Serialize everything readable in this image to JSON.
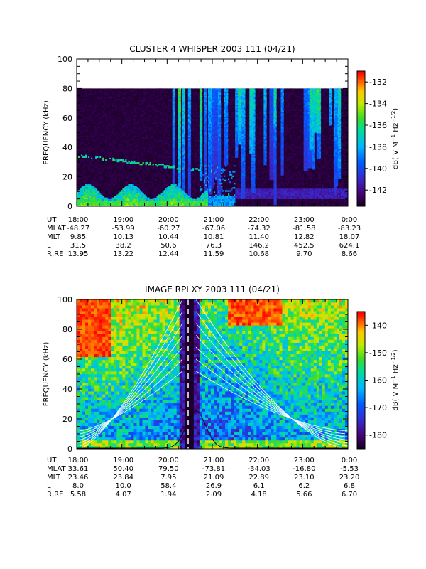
{
  "chart_data": [
    {
      "type": "heatmap",
      "title": "CLUSTER 4 WHISPER 2003 111 (04/21)",
      "ylabel": "FREQUENCY (kHz)",
      "ylim": [
        0,
        100
      ],
      "y_ticks": [
        0,
        20,
        40,
        60,
        80,
        100
      ],
      "x_tick_labels": [
        "18:00",
        "19:00",
        "20:00",
        "21:00",
        "22:00",
        "23:00",
        "0:00"
      ],
      "data_extent_khz": [
        0,
        80
      ],
      "colorbar": {
        "label": "dB( V M⁻¹ Hz⁻¹ᐟ²)",
        "label_text": "dB( V M",
        "range": [
          -143.5,
          -131
        ],
        "ticks": [
          -132,
          -134,
          -136,
          -138,
          -140,
          -142
        ]
      },
      "ephemeris": {
        "rows": [
          {
            "label": "UT",
            "values": [
              "18:00",
              "19:00",
              "20:00",
              "21:00",
              "22:00",
              "23:00",
              "0:00"
            ]
          },
          {
            "label": "MLAT",
            "values": [
              "-48.27",
              "-53.99",
              "-60.27",
              "-67.06",
              "-74.32",
              "-81.58",
              "-83.23"
            ]
          },
          {
            "label": "MLT",
            "values": [
              "9.85",
              "10.13",
              "10.44",
              "10.81",
              "11.40",
              "12.82",
              "18.07"
            ]
          },
          {
            "label": "L",
            "values": [
              "31.5",
              "38.2",
              "50.6",
              "76.3",
              "146.2",
              "452.5",
              "624.1"
            ]
          },
          {
            "label": "R,RE",
            "values": [
              "13.95",
              "13.22",
              "12.44",
              "11.59",
              "10.68",
              "9.70",
              "8.66"
            ]
          }
        ]
      }
    },
    {
      "type": "heatmap",
      "title": "IMAGE RPI XY 2003 111 (04/21)",
      "ylabel": "FREQUENCY (kHz)",
      "ylim": [
        0,
        100
      ],
      "y_ticks": [
        0,
        20,
        40,
        60,
        80,
        100
      ],
      "x_tick_labels": [
        "18:00",
        "19:00",
        "20:00",
        "21:00",
        "22:00",
        "23:00",
        "0:00"
      ],
      "colorbar": {
        "label_text": "dB( V M",
        "range": [
          -185,
          -135
        ],
        "ticks": [
          -140,
          -150,
          -160,
          -170,
          -180
        ]
      },
      "ephemeris": {
        "rows": [
          {
            "label": "UT",
            "values": [
              "18:00",
              "19:00",
              "20:00",
              "21:00",
              "22:00",
              "23:00",
              "0:00"
            ]
          },
          {
            "label": "MLAT",
            "values": [
              "33.61",
              "50.40",
              "79.50",
              "-73.81",
              "-34.03",
              "-16.80",
              "-5.53"
            ]
          },
          {
            "label": "MLT",
            "values": [
              "23.46",
              "23.84",
              "7.95",
              "21.09",
              "22.89",
              "23.10",
              "23.20"
            ]
          },
          {
            "label": "L",
            "values": [
              "8.0",
              "10.0",
              "58.4",
              "26.9",
              "6.1",
              "6.2",
              "6.8"
            ]
          },
          {
            "label": "R,RE",
            "values": [
              "5.58",
              "4.07",
              "1.94",
              "2.09",
              "4.18",
              "5.66",
              "6.70"
            ]
          }
        ]
      }
    }
  ]
}
